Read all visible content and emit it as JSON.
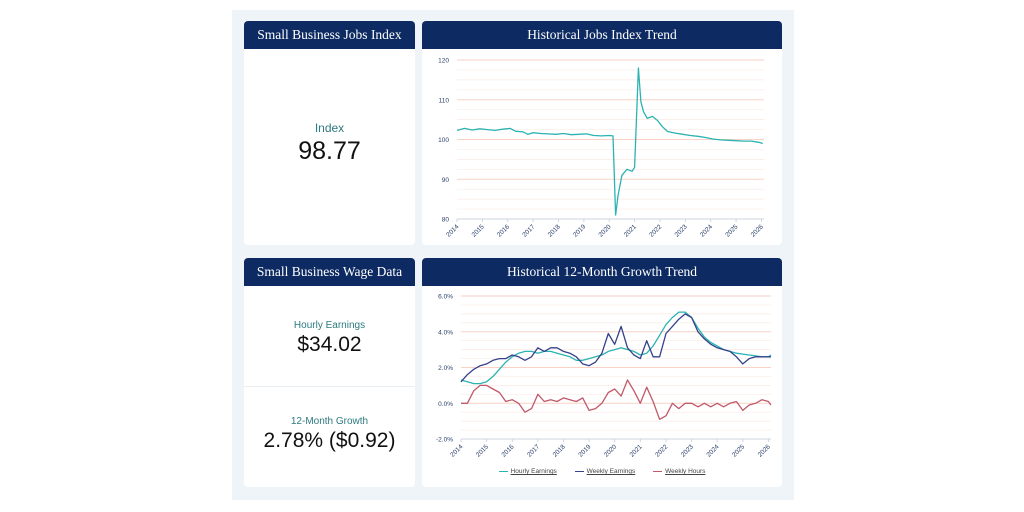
{
  "jobs_card": {
    "title": "Small Business Jobs Index",
    "label": "Index",
    "value": "98.77"
  },
  "wage_card": {
    "title": "Small Business Wage Data",
    "hourly_label": "Hourly Earnings",
    "hourly_value": "$34.02",
    "growth_label": "12-Month Growth",
    "growth_value": "2.78% ($0.92)"
  },
  "colors": {
    "header_bg": "#0d2b62",
    "hourly": "#2bb3b1",
    "weekly_earnings": "#33428a",
    "weekly_hours": "#c0596a",
    "gridline": "#f7d9cf"
  },
  "chart_data": [
    {
      "type": "line",
      "title": "Historical Jobs Index Trend",
      "xlabel": "",
      "ylabel": "",
      "ylim": [
        80,
        120
      ],
      "xlim": [
        2014,
        2026.1
      ],
      "yticks": [
        "80",
        "90",
        "100",
        "110",
        "120"
      ],
      "xticks": [
        "2014",
        "2015",
        "2016",
        "2017",
        "2018",
        "2019",
        "2020",
        "2021",
        "2022",
        "2023",
        "2024",
        "2025",
        "2026"
      ],
      "grid": true,
      "series": [
        {
          "name": "Jobs Index",
          "x": [
            2014,
            2014.3,
            2014.6,
            2014.9,
            2015.2,
            2015.5,
            2015.8,
            2016.1,
            2016.3,
            2016.6,
            2016.8,
            2017.0,
            2017.3,
            2017.6,
            2017.9,
            2018.2,
            2018.5,
            2018.8,
            2019.1,
            2019.4,
            2019.7,
            2020.0,
            2020.15,
            2020.25,
            2020.35,
            2020.5,
            2020.7,
            2020.9,
            2021.0,
            2021.15,
            2021.25,
            2021.35,
            2021.5,
            2021.7,
            2021.9,
            2022.1,
            2022.3,
            2022.6,
            2022.9,
            2023.2,
            2023.5,
            2023.8,
            2024.1,
            2024.4,
            2024.7,
            2025.0,
            2025.3,
            2025.6,
            2025.9,
            2026.05
          ],
          "y": [
            102.3,
            102.8,
            102.4,
            102.7,
            102.5,
            102.3,
            102.6,
            102.8,
            102.1,
            101.9,
            101.3,
            101.7,
            101.5,
            101.4,
            101.3,
            101.5,
            101.2,
            101.3,
            101.4,
            101.0,
            100.9,
            101.0,
            100.9,
            81.0,
            86.0,
            91.0,
            92.5,
            92.0,
            93.0,
            118.0,
            109.5,
            107.0,
            105.3,
            105.8,
            104.8,
            103.2,
            102.0,
            101.6,
            101.3,
            101.0,
            100.8,
            100.5,
            100.1,
            99.9,
            99.8,
            99.7,
            99.6,
            99.6,
            99.3,
            99.0
          ]
        }
      ]
    },
    {
      "type": "line",
      "title": "Historical 12-Month Growth Trend",
      "xlabel": "",
      "ylabel": "",
      "ylim": [
        -2.0,
        6.0
      ],
      "xlim": [
        2014,
        2026.1
      ],
      "yticks": [
        "-2.0%",
        "0.0%",
        "2.0%",
        "4.0%",
        "6.0%"
      ],
      "xticks": [
        "2014",
        "2015",
        "2016",
        "2017",
        "2018",
        "2019",
        "2020",
        "2021",
        "2022",
        "2023",
        "2024",
        "2025",
        "2026"
      ],
      "grid": true,
      "legend": "bottom",
      "x": [
        2014,
        2014.25,
        2014.5,
        2014.75,
        2015,
        2015.25,
        2015.5,
        2015.75,
        2016,
        2016.25,
        2016.5,
        2016.75,
        2017,
        2017.25,
        2017.5,
        2017.75,
        2018,
        2018.25,
        2018.5,
        2018.75,
        2019,
        2019.25,
        2019.5,
        2019.75,
        2020,
        2020.25,
        2020.5,
        2020.75,
        2021,
        2021.25,
        2021.5,
        2021.75,
        2022,
        2022.25,
        2022.5,
        2022.75,
        2023,
        2023.25,
        2023.5,
        2023.75,
        2024,
        2024.25,
        2024.5,
        2024.75,
        2025,
        2025.25,
        2025.5,
        2025.75,
        2026,
        2026.1
      ],
      "series": [
        {
          "name": "Hourly Earnings",
          "values": [
            1.3,
            1.2,
            1.1,
            1.1,
            1.2,
            1.5,
            1.9,
            2.3,
            2.6,
            2.8,
            2.9,
            2.9,
            2.8,
            2.9,
            2.9,
            2.8,
            2.7,
            2.6,
            2.4,
            2.4,
            2.5,
            2.6,
            2.7,
            2.9,
            3.0,
            3.1,
            3.0,
            2.9,
            2.7,
            2.8,
            3.2,
            3.8,
            4.4,
            4.8,
            5.1,
            5.1,
            4.8,
            4.2,
            3.7,
            3.4,
            3.2,
            3.0,
            2.9,
            2.8,
            2.75,
            2.7,
            2.65,
            2.6,
            2.6,
            2.7
          ]
        },
        {
          "name": "Weekly Earnings",
          "values": [
            1.2,
            1.6,
            1.9,
            2.1,
            2.2,
            2.4,
            2.5,
            2.5,
            2.7,
            2.6,
            2.4,
            2.6,
            3.1,
            2.9,
            3.1,
            3.1,
            2.9,
            2.8,
            2.6,
            2.2,
            2.1,
            2.3,
            2.8,
            3.9,
            3.3,
            4.3,
            3.1,
            2.7,
            2.5,
            3.5,
            2.6,
            2.6,
            3.9,
            4.3,
            4.7,
            5.0,
            4.8,
            4.0,
            3.6,
            3.3,
            3.1,
            3.0,
            2.9,
            2.6,
            2.2,
            2.5,
            2.6,
            2.6,
            2.6,
            2.6
          ]
        },
        {
          "name": "Weekly Hours",
          "values": [
            0.0,
            0.0,
            0.7,
            1.0,
            1.0,
            0.8,
            0.6,
            0.1,
            0.2,
            0.0,
            -0.5,
            -0.3,
            0.5,
            0.1,
            0.2,
            0.1,
            0.3,
            0.2,
            0.1,
            0.3,
            -0.4,
            -0.3,
            0.0,
            0.6,
            0.8,
            0.4,
            1.3,
            0.7,
            0.0,
            0.9,
            0.1,
            -0.9,
            -0.7,
            0.0,
            -0.3,
            0.0,
            0.0,
            -0.2,
            0.0,
            -0.2,
            0.0,
            -0.2,
            0.0,
            0.1,
            -0.4,
            -0.1,
            0.0,
            0.2,
            0.1,
            -0.1
          ]
        }
      ]
    }
  ]
}
